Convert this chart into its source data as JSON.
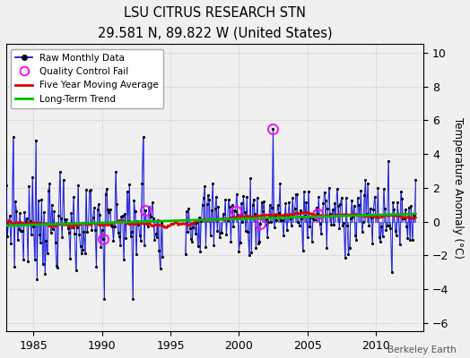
{
  "title": "LSU CITRUS RESEARCH STN",
  "subtitle": "29.581 N, 89.822 W (United States)",
  "ylabel": "Temperature Anomaly (°C)",
  "watermark": "Berkeley Earth",
  "xlim": [
    1983.0,
    2013.5
  ],
  "ylim": [
    -6.5,
    10.5
  ],
  "yticks": [
    -6,
    -4,
    -2,
    0,
    2,
    4,
    6,
    8,
    10
  ],
  "xticks": [
    1985,
    1990,
    1995,
    2000,
    2005,
    2010
  ],
  "bg_color": "#f0f0f0",
  "plot_bg_color": "#f0f0f0",
  "raw_color": "#0000dd",
  "ma_color": "#dd0000",
  "trend_color": "#00bb00",
  "qc_color": "#ff00ff",
  "seed": 7,
  "legend_labels": [
    "Raw Monthly Data",
    "Quality Control Fail",
    "Five Year Moving Average",
    "Long-Term Trend"
  ],
  "gap_start": 1994.5,
  "gap_end": 1996.0
}
